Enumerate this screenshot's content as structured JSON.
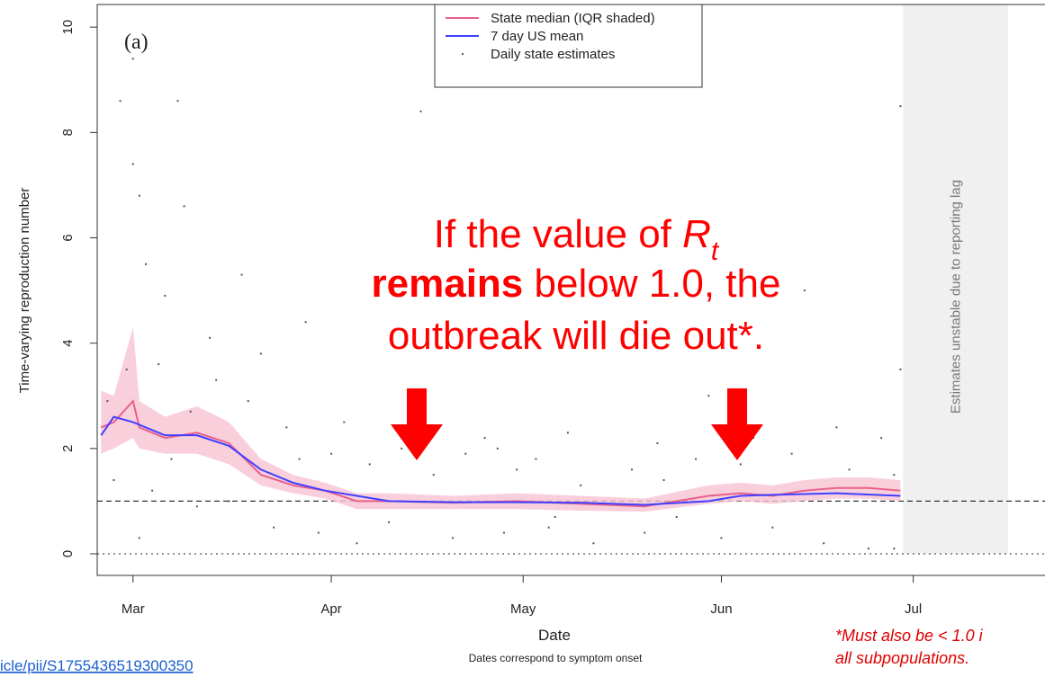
{
  "chart_data": {
    "type": "line",
    "panel_label": "(a)",
    "xlabel": "Date",
    "xsublabel": "Dates correspond to symptom onset",
    "ylabel": "Time-varying reproduction number",
    "xlim": [
      -5.6,
      142.6
    ],
    "ylim": [
      -0.41,
      10.43
    ],
    "xticks": [
      {
        "value": 0,
        "label": "Mar"
      },
      {
        "value": 31,
        "label": "Apr"
      },
      {
        "value": 61,
        "label": "May"
      },
      {
        "value": 92,
        "label": "Jun"
      },
      {
        "value": 122,
        "label": "Jul"
      }
    ],
    "yticks": [
      0,
      2,
      4,
      6,
      8,
      10
    ],
    "reference_line": 1,
    "zero_line": 0,
    "unstable_region": {
      "range": [
        120.4,
        136.8
      ],
      "label": "Estimates unstable due to reporting lag"
    },
    "legend": "top",
    "series": [
      {
        "name": "State median (IQR shaded)",
        "color": "#e8608a",
        "fill": "#f7c3d3",
        "x": [
          -5,
          -3,
          0,
          1,
          5,
          10,
          15,
          20,
          25,
          30,
          35,
          40,
          50,
          60,
          70,
          80,
          90,
          95,
          100,
          105,
          110,
          115,
          120
        ],
        "values": [
          2.4,
          2.5,
          2.9,
          2.4,
          2.2,
          2.3,
          2.1,
          1.5,
          1.3,
          1.2,
          1.0,
          1.0,
          0.97,
          1.0,
          0.95,
          0.9,
          1.1,
          1.15,
          1.1,
          1.2,
          1.25,
          1.25,
          1.2
        ],
        "iqr_low": [
          1.9,
          2.0,
          2.2,
          2.0,
          1.9,
          1.9,
          1.7,
          1.3,
          1.15,
          1.05,
          0.85,
          0.85,
          0.85,
          0.85,
          0.82,
          0.8,
          0.95,
          1.0,
          0.95,
          1.0,
          1.05,
          1.05,
          1.0
        ],
        "iqr_high": [
          3.1,
          3.0,
          4.3,
          2.9,
          2.6,
          2.8,
          2.5,
          1.8,
          1.5,
          1.35,
          1.15,
          1.15,
          1.1,
          1.15,
          1.1,
          1.05,
          1.3,
          1.35,
          1.3,
          1.4,
          1.45,
          1.45,
          1.4
        ]
      },
      {
        "name": "7 day US mean",
        "color": "#4040ff",
        "x": [
          -5,
          -3,
          0,
          5,
          10,
          15,
          20,
          25,
          30,
          35,
          40,
          50,
          60,
          70,
          80,
          90,
          95,
          100,
          110,
          120
        ],
        "values": [
          2.25,
          2.6,
          2.5,
          2.25,
          2.25,
          2.05,
          1.6,
          1.35,
          1.2,
          1.1,
          1.0,
          0.98,
          0.98,
          0.97,
          0.93,
          1.0,
          1.1,
          1.12,
          1.15,
          1.1
        ]
      },
      {
        "name": "Daily state estimates",
        "color": "#555555",
        "kind": "points",
        "x": [
          -4,
          -3,
          -2,
          -1,
          0,
          0,
          1,
          1,
          2,
          3,
          4,
          5,
          6,
          7,
          8,
          9,
          10,
          12,
          13,
          15,
          17,
          18,
          20,
          22,
          24,
          26,
          27,
          29,
          31,
          33,
          35,
          37,
          40,
          42,
          45,
          47,
          50,
          52,
          55,
          58,
          60,
          63,
          65,
          68,
          70,
          72,
          75,
          78,
          80,
          82,
          85,
          88,
          90,
          92,
          95,
          97,
          100,
          103,
          105,
          108,
          110,
          112,
          115,
          117,
          119,
          120,
          120,
          119,
          44,
          57,
          83,
          66
        ],
        "values": [
          2.9,
          1.4,
          8.6,
          3.5,
          9.4,
          7.4,
          6.8,
          0.3,
          5.5,
          1.2,
          3.6,
          4.9,
          1.8,
          8.6,
          6.6,
          2.7,
          0.9,
          4.1,
          3.3,
          1.0,
          5.3,
          2.9,
          3.8,
          0.5,
          2.4,
          1.8,
          4.4,
          0.4,
          1.9,
          2.5,
          0.2,
          1.7,
          0.6,
          2.0,
          8.4,
          1.5,
          0.3,
          1.9,
          2.2,
          0.4,
          1.6,
          1.8,
          0.5,
          2.3,
          1.3,
          0.2,
          5.0,
          1.6,
          0.4,
          2.1,
          0.7,
          1.8,
          3.0,
          0.3,
          1.7,
          2.2,
          0.5,
          1.9,
          5.0,
          0.2,
          2.4,
          1.6,
          0.1,
          2.2,
          1.5,
          3.5,
          8.5,
          0.1,
          1.9,
          2.0,
          1.4,
          0.7
        ]
      }
    ]
  },
  "annotation": {
    "line1": "If the value of ",
    "r": "R",
    "sub": "t",
    "bold": "remains",
    "line2": " below 1.0, the",
    "line3": "outbreak will die out*."
  },
  "footnote": [
    "*Must also be < 1.0 i",
    "all subpopulations."
  ],
  "link": "icle/pii/S1755436519300350"
}
